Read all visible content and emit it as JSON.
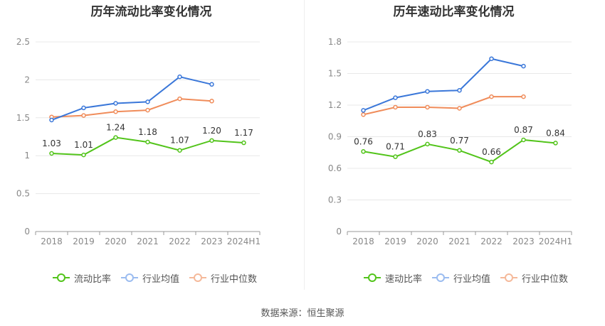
{
  "chart_data": [
    {
      "type": "line",
      "title": "历年流动比率变化情况",
      "categories": [
        "2018",
        "2019",
        "2020",
        "2021",
        "2022",
        "2023",
        "2024H1"
      ],
      "ylim": [
        0,
        2.5
      ],
      "yticks": [
        "0",
        "0.5",
        "1",
        "1.5",
        "2",
        "2.5"
      ],
      "grid": true,
      "legend_position": "bottom",
      "series": [
        {
          "name": "流动比率",
          "color": "#52c41a",
          "values": [
            1.03,
            1.01,
            1.24,
            1.18,
            1.07,
            1.2,
            1.17
          ],
          "labels": [
            "1.03",
            "1.01",
            "1.24",
            "1.18",
            "1.07",
            "1.20",
            "1.17"
          ]
        },
        {
          "name": "行业均值",
          "color": "#3a77d9",
          "values": [
            1.47,
            1.63,
            1.69,
            1.71,
            2.04,
            1.94,
            null
          ]
        },
        {
          "name": "行业中位数",
          "color": "#f08c5a",
          "values": [
            1.51,
            1.53,
            1.58,
            1.6,
            1.75,
            1.72,
            null
          ]
        }
      ]
    },
    {
      "type": "line",
      "title": "历年速动比率变化情况",
      "categories": [
        "2018",
        "2019",
        "2020",
        "2021",
        "2022",
        "2023",
        "2024H1"
      ],
      "ylim": [
        0,
        1.8
      ],
      "yticks": [
        "0",
        "0.3",
        "0.6",
        "0.9",
        "1.2",
        "1.5",
        "1.8"
      ],
      "grid": true,
      "legend_position": "bottom",
      "series": [
        {
          "name": "速动比率",
          "color": "#52c41a",
          "values": [
            0.76,
            0.71,
            0.83,
            0.77,
            0.66,
            0.87,
            0.84
          ],
          "labels": [
            "0.76",
            "0.71",
            "0.83",
            "0.77",
            "0.66",
            "0.87",
            "0.84"
          ]
        },
        {
          "name": "行业均值",
          "color": "#3a77d9",
          "values": [
            1.15,
            1.27,
            1.33,
            1.34,
            1.64,
            1.57,
            null
          ]
        },
        {
          "name": "行业中位数",
          "color": "#f08c5a",
          "values": [
            1.11,
            1.18,
            1.18,
            1.17,
            1.28,
            1.28,
            null
          ]
        }
      ]
    }
  ],
  "legend_left": [
    {
      "label": "流动比率",
      "color": "#52c41a"
    },
    {
      "label": "行业均值",
      "color": "#9bbcf0"
    },
    {
      "label": "行业中位数",
      "color": "#f5b99a"
    }
  ],
  "legend_right": [
    {
      "label": "速动比率",
      "color": "#52c41a"
    },
    {
      "label": "行业均值",
      "color": "#9bbcf0"
    },
    {
      "label": "行业中位数",
      "color": "#f5b99a"
    }
  ],
  "source_text": "数据来源：恒生聚源"
}
